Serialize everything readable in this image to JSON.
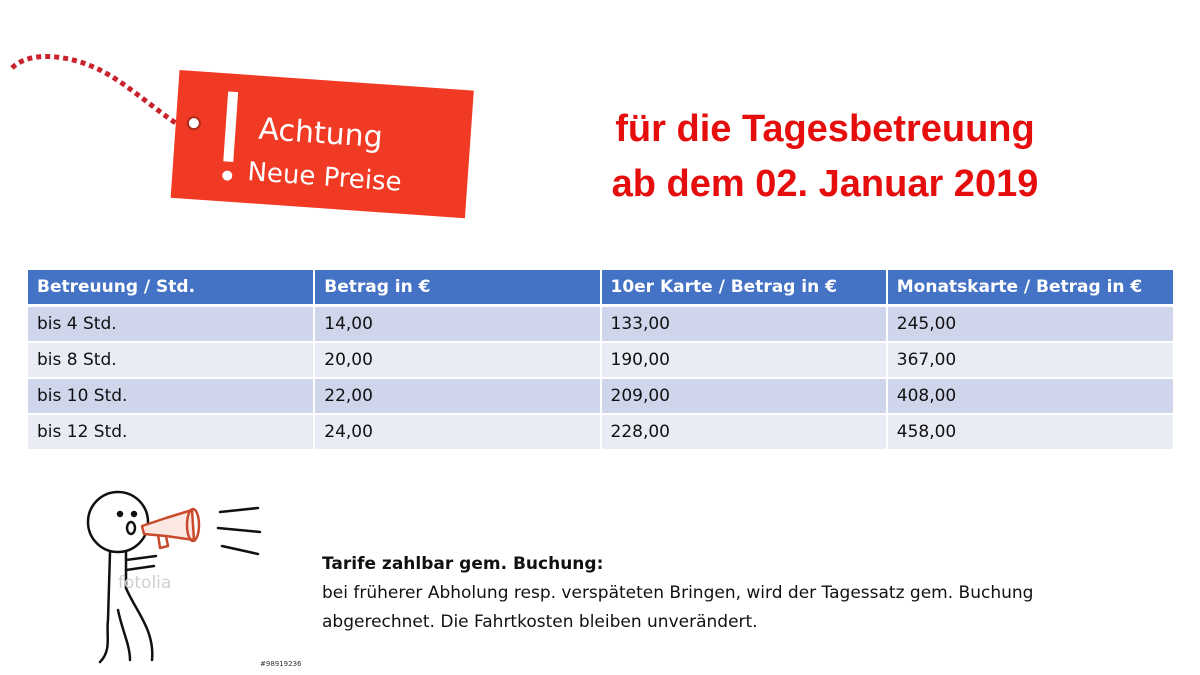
{
  "tag": {
    "line1": "Achtung",
    "line2": "Neue Preise"
  },
  "headline": {
    "line1": "für die Tagesbetreuung",
    "line2": "ab dem 02. Januar 2019"
  },
  "table": {
    "headers": [
      "Betreuung / Std.",
      "Betrag in €",
      "10er Karte / Betrag in €",
      "Monatskarte / Betrag in €"
    ],
    "rows": [
      [
        "bis 4 Std.",
        "14,00",
        "133,00",
        "245,00"
      ],
      [
        "bis 8 Std.",
        "20,00",
        "190,00",
        "367,00"
      ],
      [
        "bis 10 Std.",
        "22,00",
        "209,00",
        "408,00"
      ],
      [
        "bis 12 Std.",
        "24,00",
        "228,00",
        "458,00"
      ]
    ]
  },
  "illustration": {
    "watermark": "fotolia",
    "stock_id": "#98919236"
  },
  "notice": {
    "title": "Tarife zahlbar gem. Buchung:",
    "line1": "bei früherer Abholung resp. verspäteten Bringen, wird der Tagessatz gem. Buchung",
    "line2": "abgerechnet. Die Fahrtkosten bleiben unverändert."
  },
  "colors": {
    "headline_red": "#e60d0d",
    "tag_red": "#f03a24",
    "table_header_blue": "#4472c4",
    "row_odd": "#cfd5ea",
    "row_even": "#e9ebf5"
  }
}
